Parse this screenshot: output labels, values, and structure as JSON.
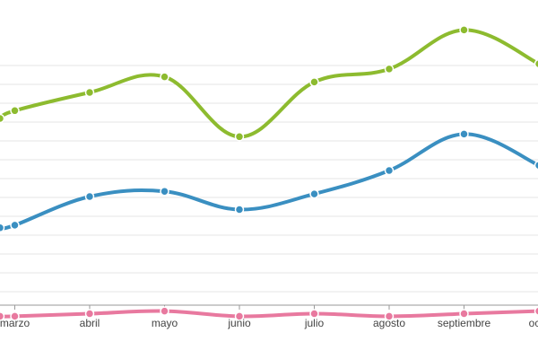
{
  "chart_data": {
    "type": "line",
    "categories": [
      "",
      "marzo",
      "abril",
      "mayo",
      "junio",
      "julio",
      "agosto",
      "septiembre",
      "octubre"
    ],
    "visible_tick_labels": [
      "marzo",
      "abril",
      "mayo",
      "junio",
      "julio",
      "agosto",
      "septiembre",
      "octu"
    ],
    "x_index_range": [
      -0.2,
      7.3
    ],
    "ylim": [
      0,
      100
    ],
    "grid": true,
    "legend": "none",
    "series": [
      {
        "color": "#8dbb2f",
        "values": [
          70,
          73,
          80,
          86,
          63,
          84,
          89,
          104,
          91
        ]
      },
      {
        "color": "#3a8fc1",
        "values": [
          28,
          29,
          40,
          42,
          35,
          41,
          50,
          64,
          52
        ]
      },
      {
        "color": "#e8799f",
        "values": [
          -6,
          -6,
          -5,
          -4,
          -6,
          -5,
          -6,
          -5,
          -4
        ]
      }
    ]
  }
}
